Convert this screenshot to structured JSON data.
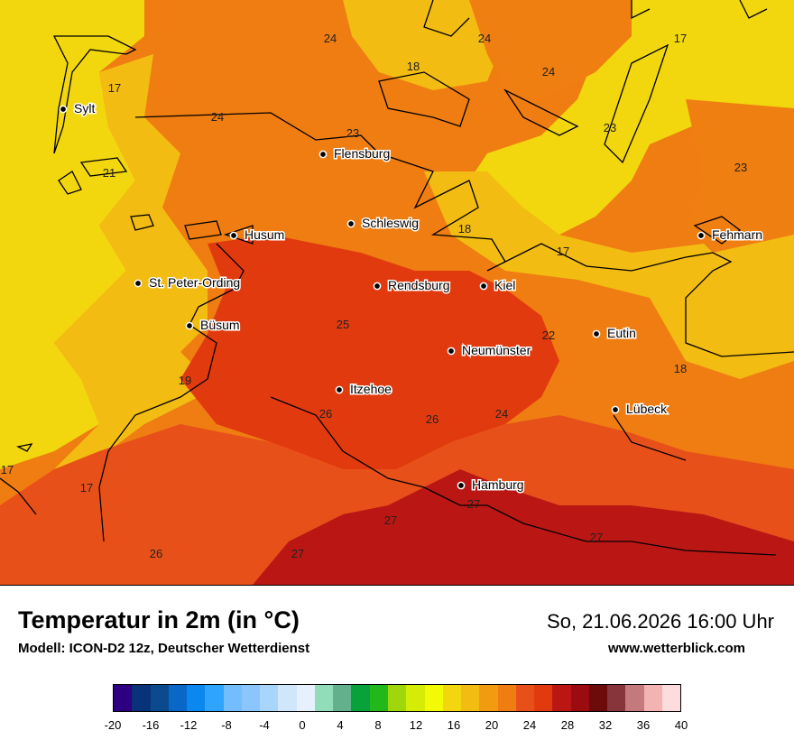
{
  "map": {
    "cities": [
      {
        "name": "Sylt"
      },
      {
        "name": "Flensburg"
      },
      {
        "name": "Husum"
      },
      {
        "name": "Schleswig"
      },
      {
        "name": "Fehmarn"
      },
      {
        "name": "St. Peter-Ording"
      },
      {
        "name": "Rendsburg"
      },
      {
        "name": "Kiel"
      },
      {
        "name": "Büsum"
      },
      {
        "name": "Eutin"
      },
      {
        "name": "Neumünster"
      },
      {
        "name": "Itzehoe"
      },
      {
        "name": "Lübeck"
      },
      {
        "name": "Hamburg"
      }
    ],
    "isotherm_labels": [
      "24",
      "24",
      "17",
      "18",
      "24",
      "17",
      "24",
      "23",
      "23",
      "21",
      "23",
      "18",
      "17",
      "25",
      "22",
      "19",
      "18",
      "26",
      "26",
      "24",
      "17",
      "17",
      "27",
      "27",
      "27",
      "26",
      "27"
    ],
    "colors": {
      "t17": "#f2d70e",
      "t18": "#f3bc12",
      "t22": "#f07f12",
      "t24": "#e8501a",
      "t26": "#e23a0f",
      "t28": "#ba1714"
    }
  },
  "footer": {
    "title": "Temperatur in 2m (in °C)",
    "model": "Modell: ICON-D2 12z, Deutscher Wetterdienst",
    "datetime": "So, 21.06.2026 16:00 Uhr",
    "website": "www.wetterblick.com"
  },
  "legend": {
    "colors": [
      "#2c0080",
      "#08337a",
      "#0b4a8f",
      "#0867c7",
      "#0b87f0",
      "#2ea4ff",
      "#73bdfd",
      "#8ac6fb",
      "#a8d6fa",
      "#cfe6fb",
      "#e6f1fd",
      "#91dcb9",
      "#62b08c",
      "#08a13a",
      "#22b81c",
      "#9fd70c",
      "#d4ec06",
      "#f2fa06",
      "#f2d70e",
      "#f3bc12",
      "#f39b10",
      "#ef7d12",
      "#e8501a",
      "#e23a0f",
      "#ba1714",
      "#9b0c10",
      "#6d0a0a",
      "#87343a",
      "#c47a7c",
      "#f4b3b3",
      "#fcdcdc"
    ],
    "ticks": [
      "-20",
      "-16",
      "-12",
      "-8",
      "-4",
      "0",
      "4",
      "8",
      "12",
      "16",
      "20",
      "24",
      "28",
      "32",
      "36",
      "40"
    ]
  }
}
